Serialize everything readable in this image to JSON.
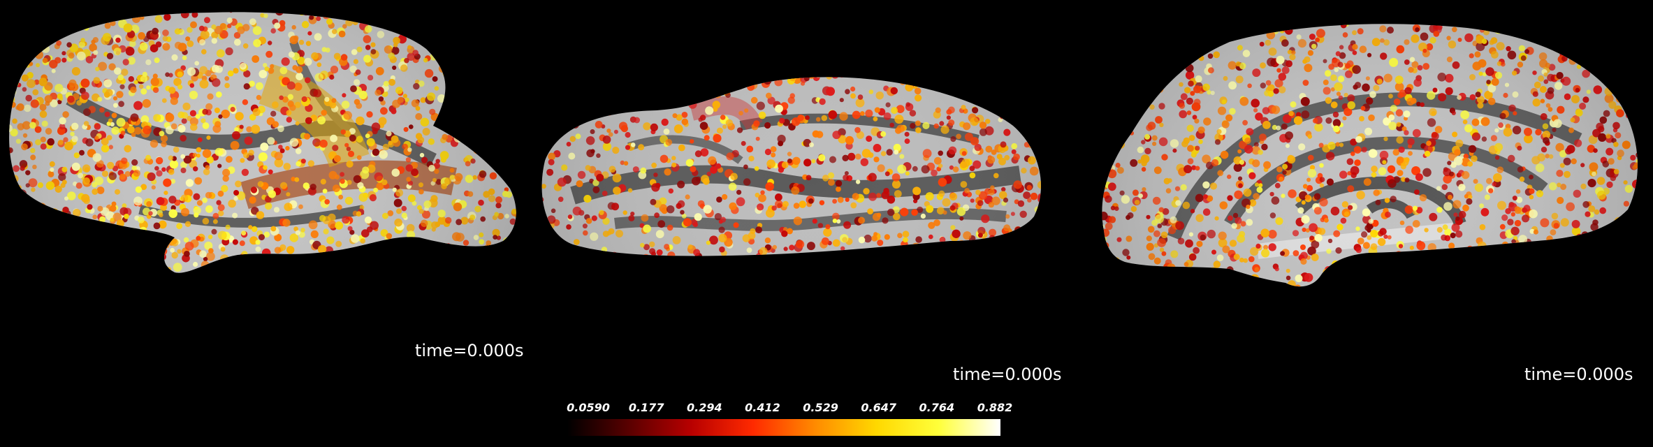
{
  "views": [
    {
      "time_label": "time=0.000s"
    },
    {
      "time_label": "time=0.000s"
    },
    {
      "time_label": "time=0.000s"
    }
  ],
  "colorbar": {
    "ticks": [
      "0.0590",
      "0.177",
      "0.294",
      "0.412",
      "0.529",
      "0.647",
      "0.764",
      "0.882"
    ],
    "colors": [
      "#000000",
      "#5a0000",
      "#b80000",
      "#ff2a00",
      "#ff8a00",
      "#ffd800",
      "#ffff3a",
      "#ffffff"
    ]
  },
  "colors": {
    "background": "#000000",
    "sulcus": "#5c5c5c",
    "gyrus": "#bdbdbd"
  }
}
